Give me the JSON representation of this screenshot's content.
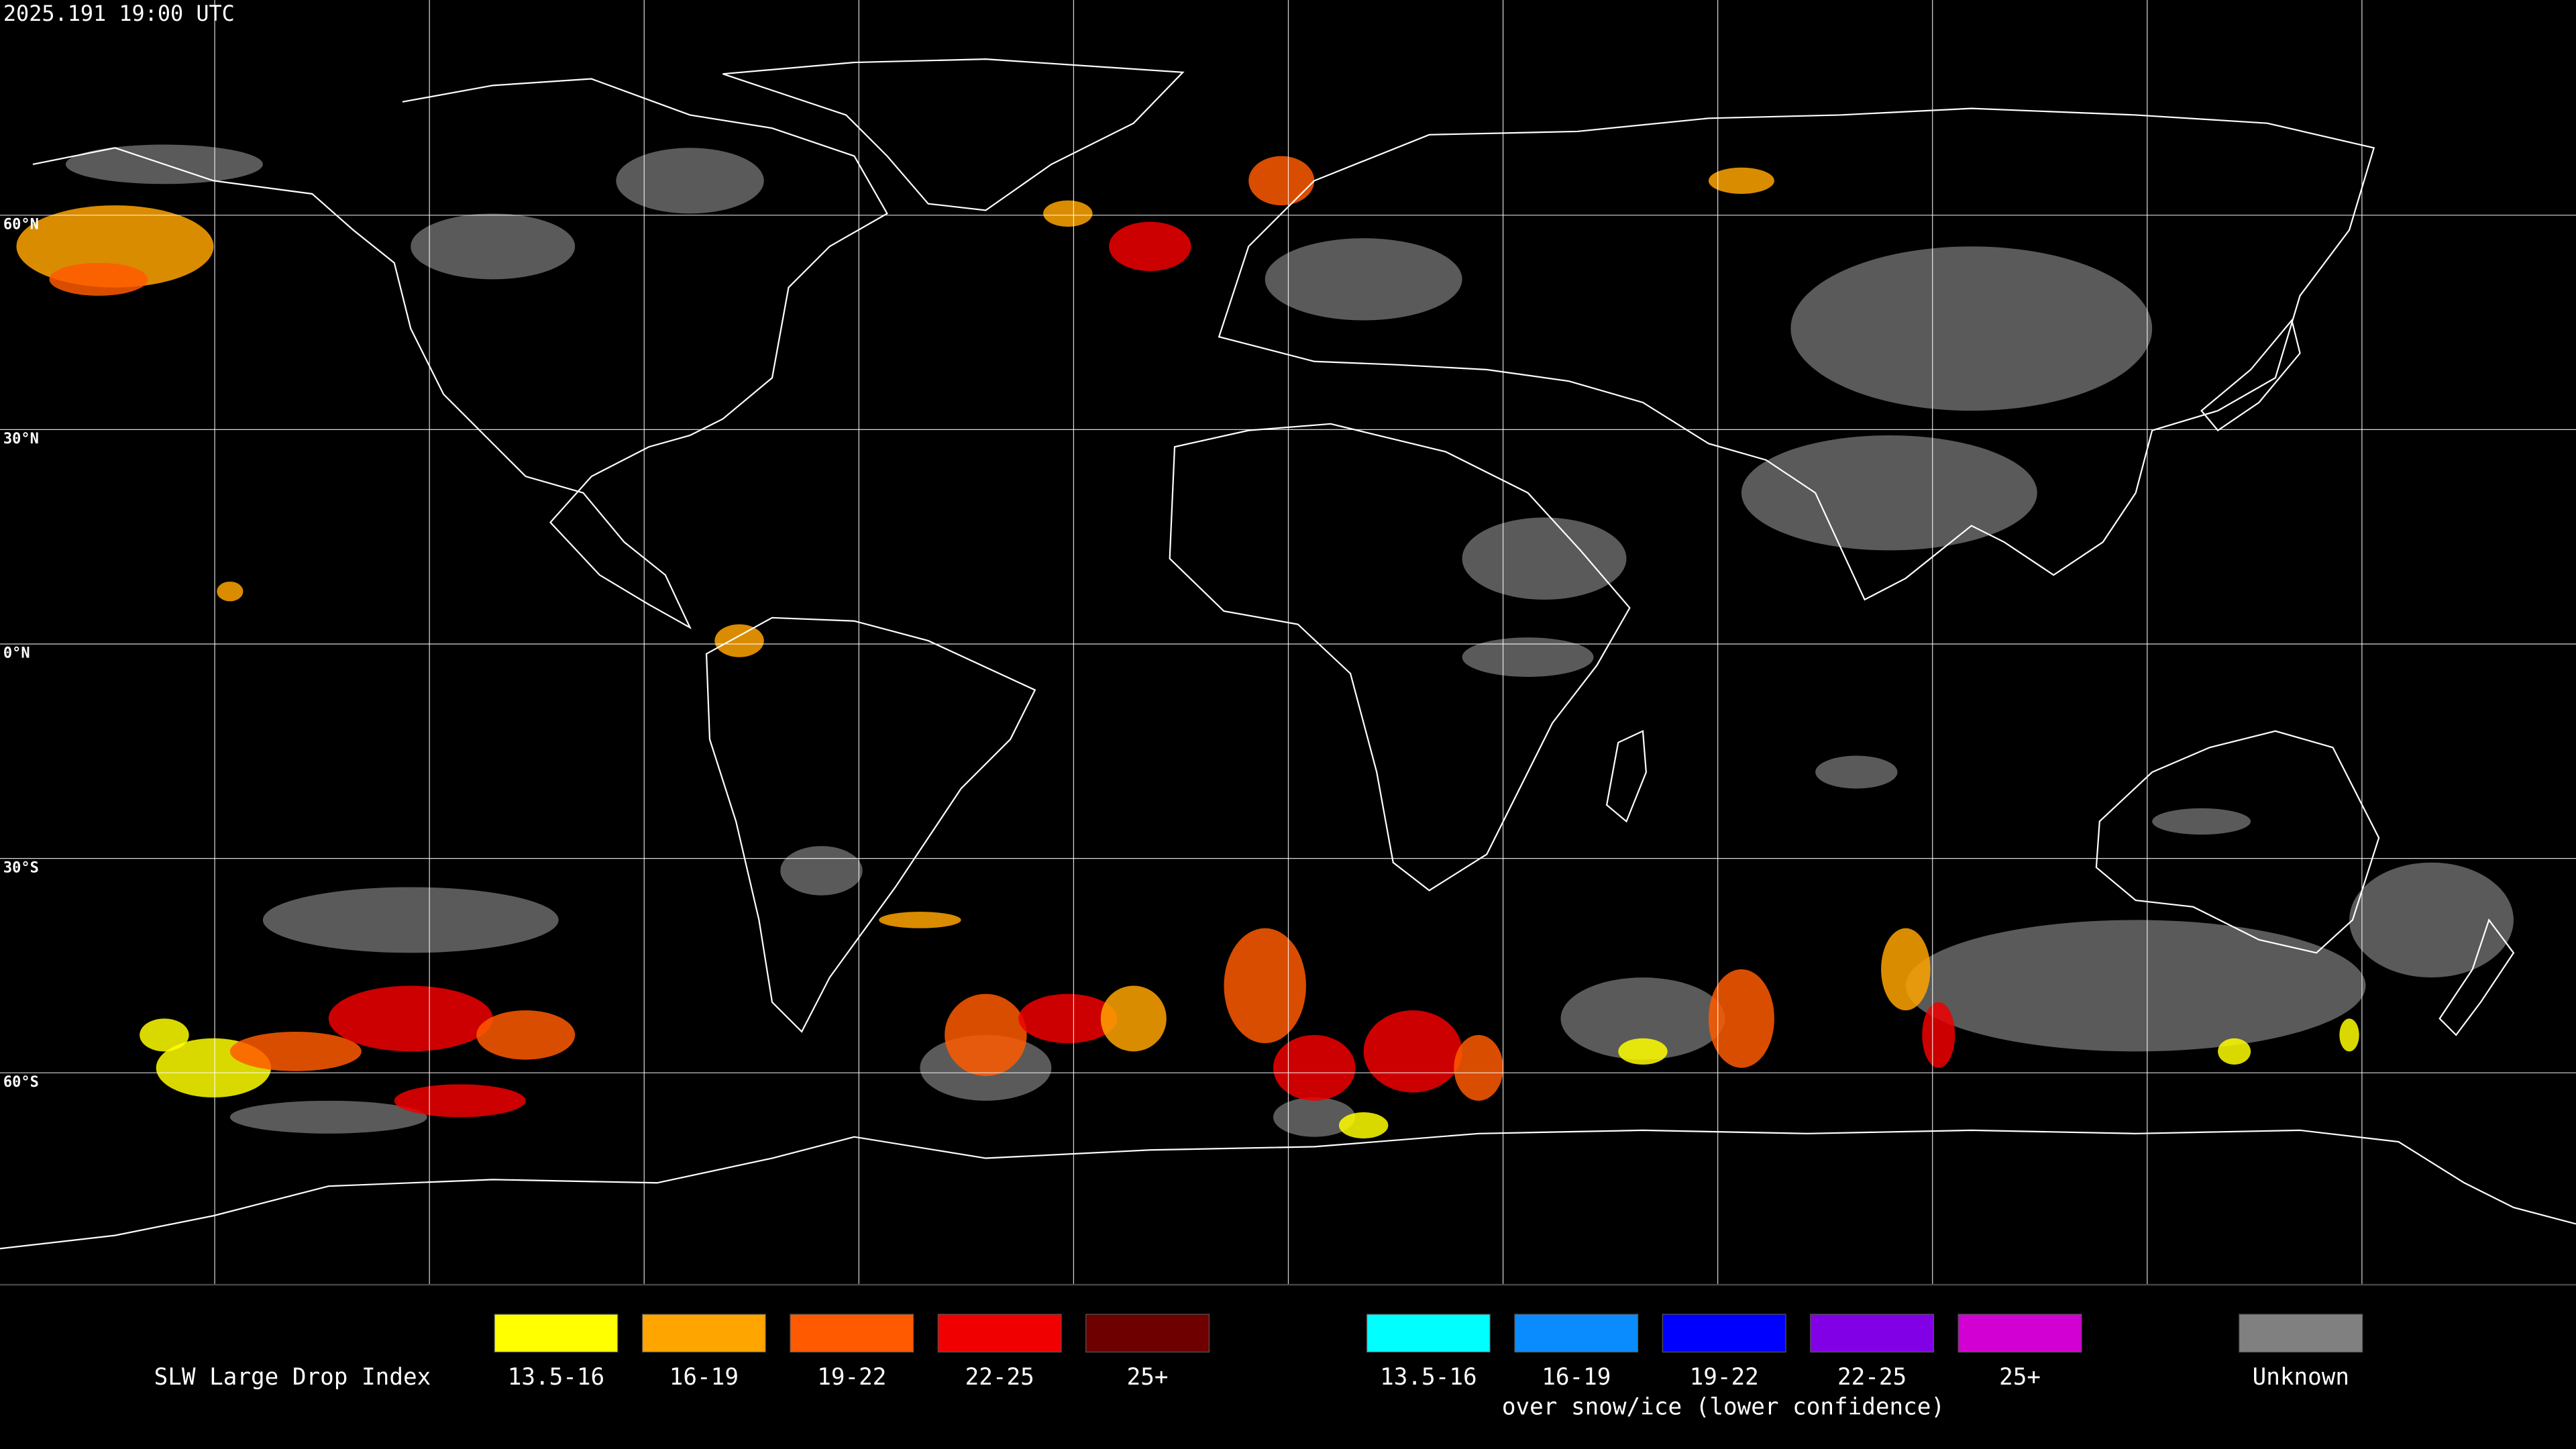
{
  "header": {
    "timestamp": "2025.191 19:00 UTC"
  },
  "map": {
    "lat_labels": [
      "60°N",
      "30°N",
      "0°N",
      "30°S",
      "60°S"
    ]
  },
  "legend": {
    "title": "SLW Large Drop Index",
    "liquid": [
      {
        "label": "13.5-16",
        "color": "#ffff00"
      },
      {
        "label": "16-19",
        "color": "#ffa500"
      },
      {
        "label": "19-22",
        "color": "#ff5a00"
      },
      {
        "label": "22-25",
        "color": "#f00000"
      },
      {
        "label": "25+",
        "color": "#6e0000"
      }
    ],
    "snow_ice": [
      {
        "label": "13.5-16",
        "color": "#00ffff"
      },
      {
        "label": "16-19",
        "color": "#0a8cff"
      },
      {
        "label": "19-22",
        "color": "#0000ff"
      },
      {
        "label": "22-25",
        "color": "#8200e6"
      },
      {
        "label": "25+",
        "color": "#d200d2"
      }
    ],
    "snow_ice_note": "over snow/ice (lower confidence)",
    "unknown": {
      "label": "Unknown",
      "color": "#808080"
    }
  }
}
